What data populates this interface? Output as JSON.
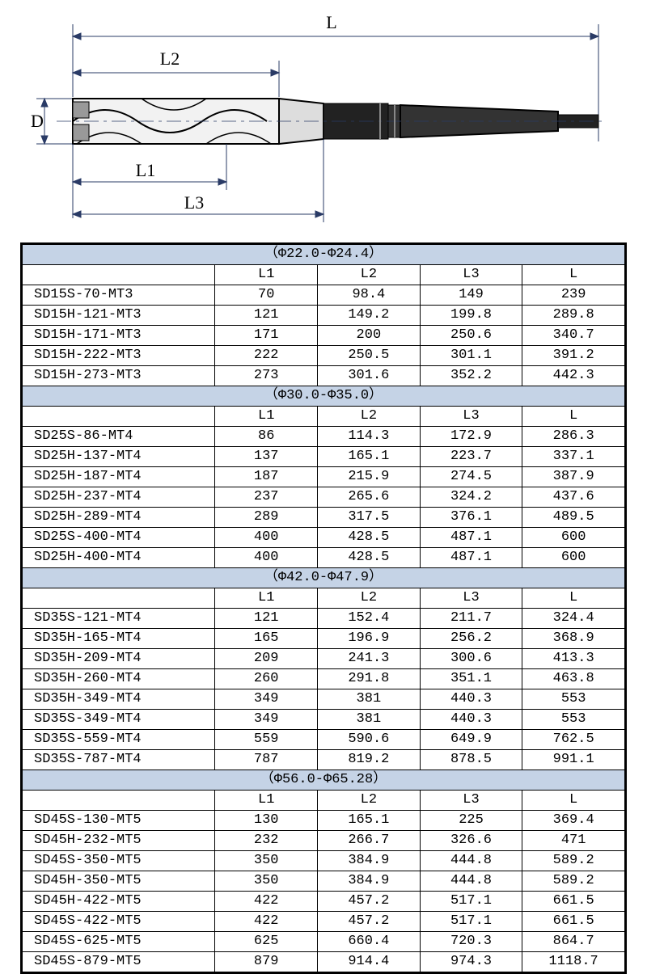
{
  "diagram": {
    "labels": {
      "L": "L",
      "L1": "L1",
      "L2": "L2",
      "L3": "L3",
      "D": "D"
    },
    "line_color": "#000000",
    "thin_line_color": "#2a3b66"
  },
  "table": {
    "columns": [
      "L1",
      "L2",
      "L3",
      "L"
    ],
    "groups": [
      {
        "range": "（Φ22.0-Φ24.4）",
        "rows": [
          {
            "model": "SD15S-70-MT3",
            "v": [
              "70",
              "98.4",
              "149",
              "239"
            ]
          },
          {
            "model": "SD15H-121-MT3",
            "v": [
              "121",
              "149.2",
              "199.8",
              "289.8"
            ]
          },
          {
            "model": "SD15H-171-MT3",
            "v": [
              "171",
              "200",
              "250.6",
              "340.7"
            ]
          },
          {
            "model": "SD15H-222-MT3",
            "v": [
              "222",
              "250.5",
              "301.1",
              "391.2"
            ]
          },
          {
            "model": "SD15H-273-MT3",
            "v": [
              "273",
              "301.6",
              "352.2",
              "442.3"
            ]
          }
        ]
      },
      {
        "range": "（Φ30.0-Φ35.0）",
        "rows": [
          {
            "model": "SD25S-86-MT4",
            "v": [
              "86",
              "114.3",
              "172.9",
              "286.3"
            ]
          },
          {
            "model": "SD25H-137-MT4",
            "v": [
              "137",
              "165.1",
              "223.7",
              "337.1"
            ]
          },
          {
            "model": "SD25H-187-MT4",
            "v": [
              "187",
              "215.9",
              "274.5",
              "387.9"
            ]
          },
          {
            "model": "SD25H-237-MT4",
            "v": [
              "237",
              "265.6",
              "324.2",
              "437.6"
            ]
          },
          {
            "model": "SD25H-289-MT4",
            "v": [
              "289",
              "317.5",
              "376.1",
              "489.5"
            ]
          },
          {
            "model": "SD25S-400-MT4",
            "v": [
              "400",
              "428.5",
              "487.1",
              "600"
            ]
          },
          {
            "model": "SD25H-400-MT4",
            "v": [
              "400",
              "428.5",
              "487.1",
              "600"
            ]
          }
        ]
      },
      {
        "range": "（Φ42.0-Φ47.9）",
        "rows": [
          {
            "model": "SD35S-121-MT4",
            "v": [
              "121",
              "152.4",
              "211.7",
              "324.4"
            ]
          },
          {
            "model": "SD35H-165-MT4",
            "v": [
              "165",
              "196.9",
              "256.2",
              "368.9"
            ]
          },
          {
            "model": "SD35H-209-MT4",
            "v": [
              "209",
              "241.3",
              "300.6",
              "413.3"
            ]
          },
          {
            "model": "SD35H-260-MT4",
            "v": [
              "260",
              "291.8",
              "351.1",
              "463.8"
            ]
          },
          {
            "model": "SD35H-349-MT4",
            "v": [
              "349",
              "381",
              "440.3",
              "553"
            ]
          },
          {
            "model": "SD35S-349-MT4",
            "v": [
              "349",
              "381",
              "440.3",
              "553"
            ]
          },
          {
            "model": "SD35S-559-MT4",
            "v": [
              "559",
              "590.6",
              "649.9",
              "762.5"
            ]
          },
          {
            "model": "SD35S-787-MT4",
            "v": [
              "787",
              "819.2",
              "878.5",
              "991.1"
            ]
          }
        ]
      },
      {
        "range": "（Φ56.0-Φ65.28）",
        "rows": [
          {
            "model": "SD45S-130-MT5",
            "v": [
              "130",
              "165.1",
              "225",
              "369.4"
            ]
          },
          {
            "model": "SD45H-232-MT5",
            "v": [
              "232",
              "266.7",
              "326.6",
              "471"
            ]
          },
          {
            "model": "SD45S-350-MT5",
            "v": [
              "350",
              "384.9",
              "444.8",
              "589.2"
            ]
          },
          {
            "model": "SD45H-350-MT5",
            "v": [
              "350",
              "384.9",
              "444.8",
              "589.2"
            ]
          },
          {
            "model": "SD45H-422-MT5",
            "v": [
              "422",
              "457.2",
              "517.1",
              "661.5"
            ]
          },
          {
            "model": "SD45S-422-MT5",
            "v": [
              "422",
              "457.2",
              "517.1",
              "661.5"
            ]
          },
          {
            "model": "SD45S-625-MT5",
            "v": [
              "625",
              "660.4",
              "720.3",
              "864.7"
            ]
          },
          {
            "model": "SD45S-879-MT5",
            "v": [
              "879",
              "914.4",
              "974.3",
              "1118.7"
            ]
          }
        ]
      }
    ]
  }
}
